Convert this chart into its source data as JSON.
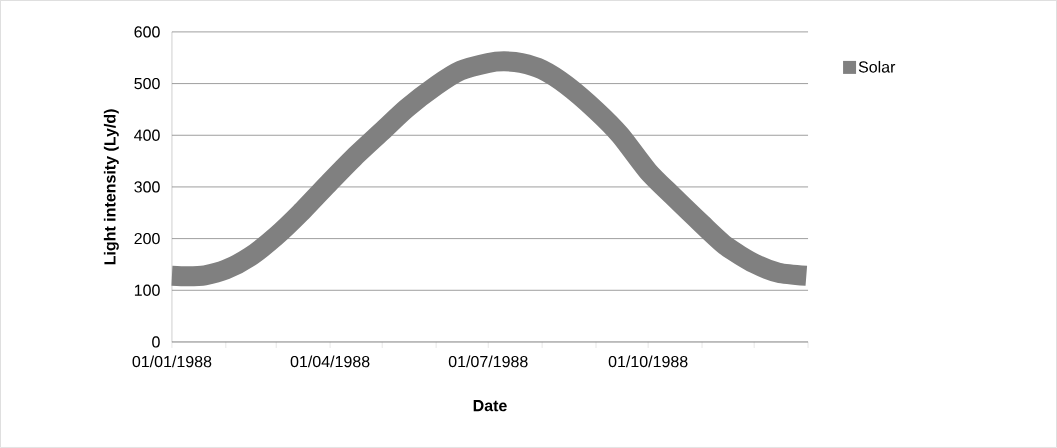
{
  "chart_data": {
    "type": "line",
    "xlabel": "Date",
    "ylabel": "Light intensity (Ly/d)",
    "x": [
      "1988-01-01",
      "1988-01-10",
      "1988-01-20",
      "1988-02-01",
      "1988-02-15",
      "1988-03-01",
      "1988-03-15",
      "1988-04-01",
      "1988-04-15",
      "1988-05-01",
      "1988-05-15",
      "1988-06-01",
      "1988-06-15",
      "1988-07-01",
      "1988-07-10",
      "1988-07-20",
      "1988-08-01",
      "1988-08-15",
      "1988-09-01",
      "1988-09-15",
      "1988-10-01",
      "1988-10-15",
      "1988-11-01",
      "1988-11-15",
      "1988-12-01",
      "1988-12-15",
      "1988-12-31"
    ],
    "series": [
      {
        "name": "Solar",
        "color": "#808080",
        "values": [
          128,
          127,
          129,
          140,
          165,
          205,
          250,
          310,
          358,
          408,
          452,
          496,
          525,
          540,
          543,
          540,
          527,
          497,
          448,
          400,
          330,
          283,
          228,
          185,
          152,
          134,
          128
        ]
      }
    ],
    "xlim": [
      "1988-01-01",
      "1989-01-01"
    ],
    "xticks": [
      {
        "value": "1988-01-01",
        "label": "01/01/1988"
      },
      {
        "value": "1988-02-01",
        "label": null
      },
      {
        "value": "1988-03-01",
        "label": null
      },
      {
        "value": "1988-04-01",
        "label": "01/04/1988"
      },
      {
        "value": "1988-05-01",
        "label": null
      },
      {
        "value": "1988-06-01",
        "label": null
      },
      {
        "value": "1988-07-01",
        "label": "01/07/1988"
      },
      {
        "value": "1988-08-01",
        "label": null
      },
      {
        "value": "1988-09-01",
        "label": null
      },
      {
        "value": "1988-10-01",
        "label": "01/10/1988"
      },
      {
        "value": "1988-11-01",
        "label": null
      },
      {
        "value": "1988-12-01",
        "label": null
      },
      {
        "value": "1989-01-01",
        "label": null
      }
    ],
    "ylim": [
      0,
      600
    ],
    "yticks": [
      0,
      100,
      200,
      300,
      400,
      500,
      600
    ],
    "grid": "y",
    "legend": "right",
    "marker": "none",
    "line_style": "solid"
  }
}
